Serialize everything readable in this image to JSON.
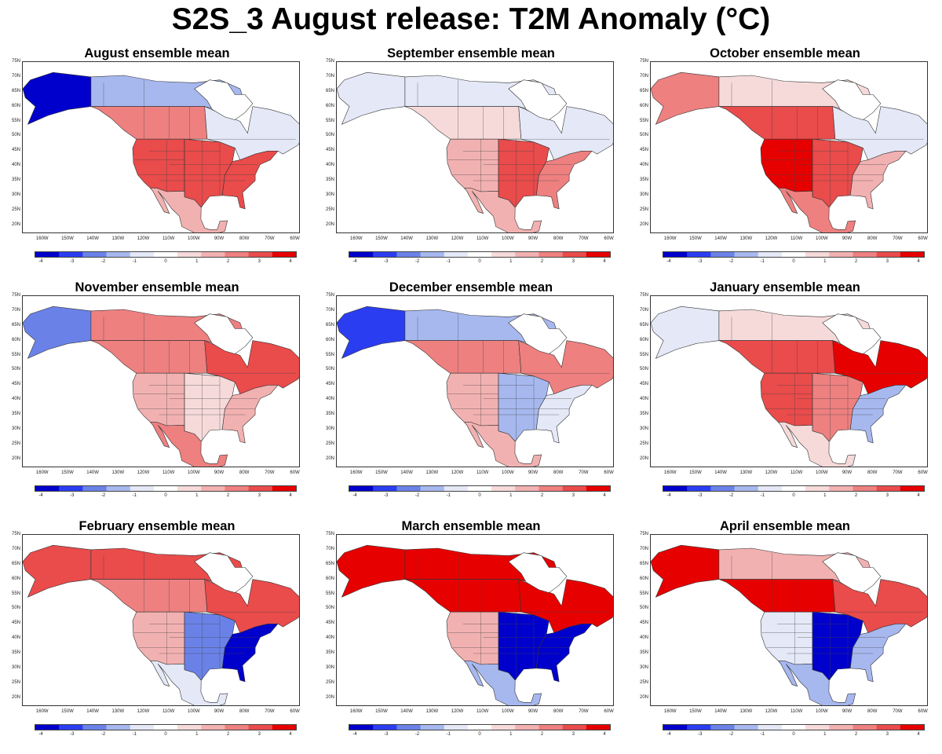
{
  "title": "S2S_3 August release: T2M Anomaly (°C)",
  "legend": {
    "ticks": [
      "-4",
      "-3",
      "-2",
      "-1",
      "0",
      "1",
      "2",
      "3",
      "4"
    ],
    "colors": [
      "#0000cc",
      "#2b3df0",
      "#6a82e8",
      "#a7b8ef",
      "#e4e8f7",
      "#ffffff",
      "#f6dada",
      "#f2b1b1",
      "#ee8080",
      "#ea4b4b",
      "#e60000"
    ]
  },
  "axes": {
    "lat_labels": [
      "75N",
      "70N",
      "65N",
      "60N",
      "55N",
      "50N",
      "45N",
      "40N",
      "35N",
      "30N",
      "25N",
      "20N"
    ],
    "lon_labels": [
      "160W",
      "150W",
      "140W",
      "130W",
      "120W",
      "110W",
      "100W",
      "90W",
      "80W",
      "70W",
      "60W"
    ]
  },
  "panels": [
    {
      "title": "August ensemble mean",
      "anomalies": [
        {
          "region": "alaska",
          "value": -3.6
        },
        {
          "region": "northern-canada",
          "value": -1.8
        },
        {
          "region": "western-canada",
          "value": 2.3
        },
        {
          "region": "eastern-canada",
          "value": -0.6
        },
        {
          "region": "western-us",
          "value": 3.2
        },
        {
          "region": "central-us",
          "value": 3.4
        },
        {
          "region": "eastern-us",
          "value": 2.8
        },
        {
          "region": "mexico",
          "value": 1.6
        }
      ]
    },
    {
      "title": "September ensemble mean",
      "anomalies": [
        {
          "region": "alaska",
          "value": -1.0
        },
        {
          "region": "northern-canada",
          "value": -0.9
        },
        {
          "region": "western-canada",
          "value": 0.8
        },
        {
          "region": "eastern-canada",
          "value": -0.5
        },
        {
          "region": "western-us",
          "value": 1.6
        },
        {
          "region": "central-us",
          "value": 3.4
        },
        {
          "region": "eastern-us",
          "value": 2.6
        },
        {
          "region": "mexico",
          "value": 1.2
        }
      ]
    },
    {
      "title": "October ensemble mean",
      "anomalies": [
        {
          "region": "alaska",
          "value": 2.6
        },
        {
          "region": "northern-canada",
          "value": 0.6
        },
        {
          "region": "western-canada",
          "value": 3.3
        },
        {
          "region": "eastern-canada",
          "value": -1.2
        },
        {
          "region": "western-us",
          "value": 3.6
        },
        {
          "region": "central-us",
          "value": 2.8
        },
        {
          "region": "eastern-us",
          "value": 1.8
        },
        {
          "region": "mexico",
          "value": 2.0
        }
      ]
    },
    {
      "title": "November ensemble mean",
      "anomalies": [
        {
          "region": "alaska",
          "value": -2.6
        },
        {
          "region": "northern-canada",
          "value": 2.2
        },
        {
          "region": "western-canada",
          "value": 2.6
        },
        {
          "region": "eastern-canada",
          "value": 3.2
        },
        {
          "region": "western-us",
          "value": 1.6
        },
        {
          "region": "central-us",
          "value": 0.6
        },
        {
          "region": "eastern-us",
          "value": 1.4
        },
        {
          "region": "mexico",
          "value": 2.2
        }
      ]
    },
    {
      "title": "December ensemble mean",
      "anomalies": [
        {
          "region": "alaska",
          "value": -3.0
        },
        {
          "region": "northern-canada",
          "value": -1.6
        },
        {
          "region": "western-canada",
          "value": 2.2
        },
        {
          "region": "eastern-canada",
          "value": 2.6
        },
        {
          "region": "western-us",
          "value": 1.2
        },
        {
          "region": "central-us",
          "value": -1.8
        },
        {
          "region": "eastern-us",
          "value": -1.0
        },
        {
          "region": "mexico",
          "value": 1.4
        }
      ]
    },
    {
      "title": "January ensemble mean",
      "anomalies": [
        {
          "region": "alaska",
          "value": -1.2
        },
        {
          "region": "northern-canada",
          "value": 0.4
        },
        {
          "region": "western-canada",
          "value": 3.4
        },
        {
          "region": "eastern-canada",
          "value": 3.6
        },
        {
          "region": "western-us",
          "value": 3.0
        },
        {
          "region": "central-us",
          "value": 2.0
        },
        {
          "region": "eastern-us",
          "value": -1.4
        },
        {
          "region": "mexico",
          "value": 0.6
        }
      ]
    },
    {
      "title": "February ensemble mean",
      "anomalies": [
        {
          "region": "alaska",
          "value": 3.2
        },
        {
          "region": "northern-canada",
          "value": 2.8
        },
        {
          "region": "western-canada",
          "value": 2.6
        },
        {
          "region": "eastern-canada",
          "value": 3.4
        },
        {
          "region": "western-us",
          "value": 1.4
        },
        {
          "region": "central-us",
          "value": -2.6
        },
        {
          "region": "eastern-us",
          "value": -4.0
        },
        {
          "region": "mexico",
          "value": -1.2
        }
      ]
    },
    {
      "title": "March ensemble mean",
      "anomalies": [
        {
          "region": "alaska",
          "value": 4.0
        },
        {
          "region": "northern-canada",
          "value": 4.0
        },
        {
          "region": "western-canada",
          "value": 3.8
        },
        {
          "region": "eastern-canada",
          "value": 3.8
        },
        {
          "region": "western-us",
          "value": 1.2
        },
        {
          "region": "central-us",
          "value": -3.8
        },
        {
          "region": "eastern-us",
          "value": -3.6
        },
        {
          "region": "mexico",
          "value": -2.0
        }
      ]
    },
    {
      "title": "April ensemble mean",
      "anomalies": [
        {
          "region": "alaska",
          "value": 4.0
        },
        {
          "region": "northern-canada",
          "value": 1.4
        },
        {
          "region": "western-canada",
          "value": 3.6
        },
        {
          "region": "eastern-canada",
          "value": 3.2
        },
        {
          "region": "western-us",
          "value": -1.0
        },
        {
          "region": "central-us",
          "value": -4.0
        },
        {
          "region": "eastern-us",
          "value": -2.0
        },
        {
          "region": "mexico",
          "value": -1.6
        }
      ]
    }
  ]
}
